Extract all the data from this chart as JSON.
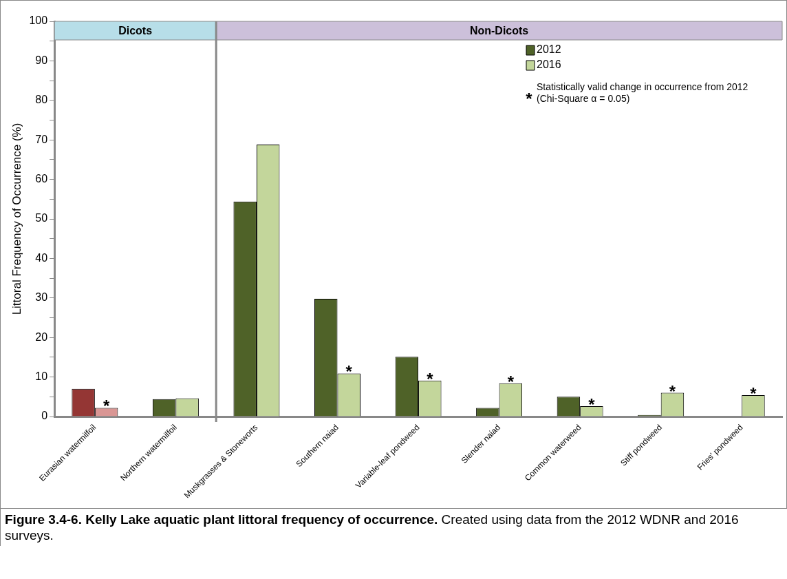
{
  "chart_data": {
    "type": "bar",
    "title": "Figure 3.4-6.  Kelly Lake aquatic plant littoral frequency of occurrence.",
    "subtitle": "Created using data from the 2012 WDNR and 2016 surveys.",
    "ylabel": "Littoral Frequency of Occurrence (%)",
    "categories": [
      "Eurasian watermilfoil",
      "Northern watermilfoil",
      "Muskgrasses & Stoneworts",
      "Southern naiad",
      "Variable-leaf pondweed",
      "Slender naiad",
      "Common waterweed",
      "Stiff pondweed",
      "Fries' pondweed"
    ],
    "series": [
      {
        "name": "2012",
        "color": "#4f6228",
        "colors": [
          "#943634",
          "#4f6228",
          "#4f6228",
          "#4f6228",
          "#4f6228",
          "#4f6228",
          "#4f6228",
          "#4f6228",
          "#4f6228"
        ],
        "values": [
          7.0,
          4.4,
          54.4,
          29.8,
          15.1,
          2.2,
          5.0,
          0.4,
          0
        ]
      },
      {
        "name": "2016",
        "color": "#c3d69b",
        "colors": [
          "#d99694",
          "#c3d69b",
          "#c3d69b",
          "#c3d69b",
          "#c3d69b",
          "#c3d69b",
          "#c3d69b",
          "#c3d69b",
          "#c3d69b"
        ],
        "values": [
          2.2,
          4.6,
          68.8,
          10.9,
          9.1,
          8.4,
          2.6,
          6.0,
          5.4
        ],
        "value_labels": [
          "*",
          null,
          null,
          "*",
          "*",
          "*",
          "*",
          "*",
          "*"
        ]
      }
    ],
    "ylim": [
      0,
      100
    ],
    "yticks": [
      0,
      {
        "value": 5,
        "label": null
      },
      10,
      {
        "value": 15,
        "label": null
      },
      20,
      {
        "value": 25,
        "label": null
      },
      30,
      {
        "value": 35,
        "label": null
      },
      40,
      {
        "value": 45,
        "label": null
      },
      50,
      {
        "value": 55,
        "label": null
      },
      60,
      {
        "value": 65,
        "label": null
      },
      70,
      {
        "value": 75,
        "label": null
      },
      80,
      {
        "value": 85,
        "label": null
      },
      90,
      {
        "value": 95,
        "label": null
      },
      100
    ],
    "bands": [
      {
        "axis": "x",
        "from": "Eurasian watermilfoil",
        "to": "Northern watermilfoil",
        "label": "Dicots",
        "color": "#b7dee8"
      },
      {
        "axis": "x",
        "from": "Muskgrasses & Stoneworts",
        "to": "Fries' pondweed",
        "label": "Non-Dicots",
        "color": "#ccc0da"
      }
    ],
    "annotations": [
      "*",
      "Statistically valid change in occurrence from 2012 (Chi-Square α = 0.05)"
    ],
    "legend": "top right",
    "grid": false
  }
}
